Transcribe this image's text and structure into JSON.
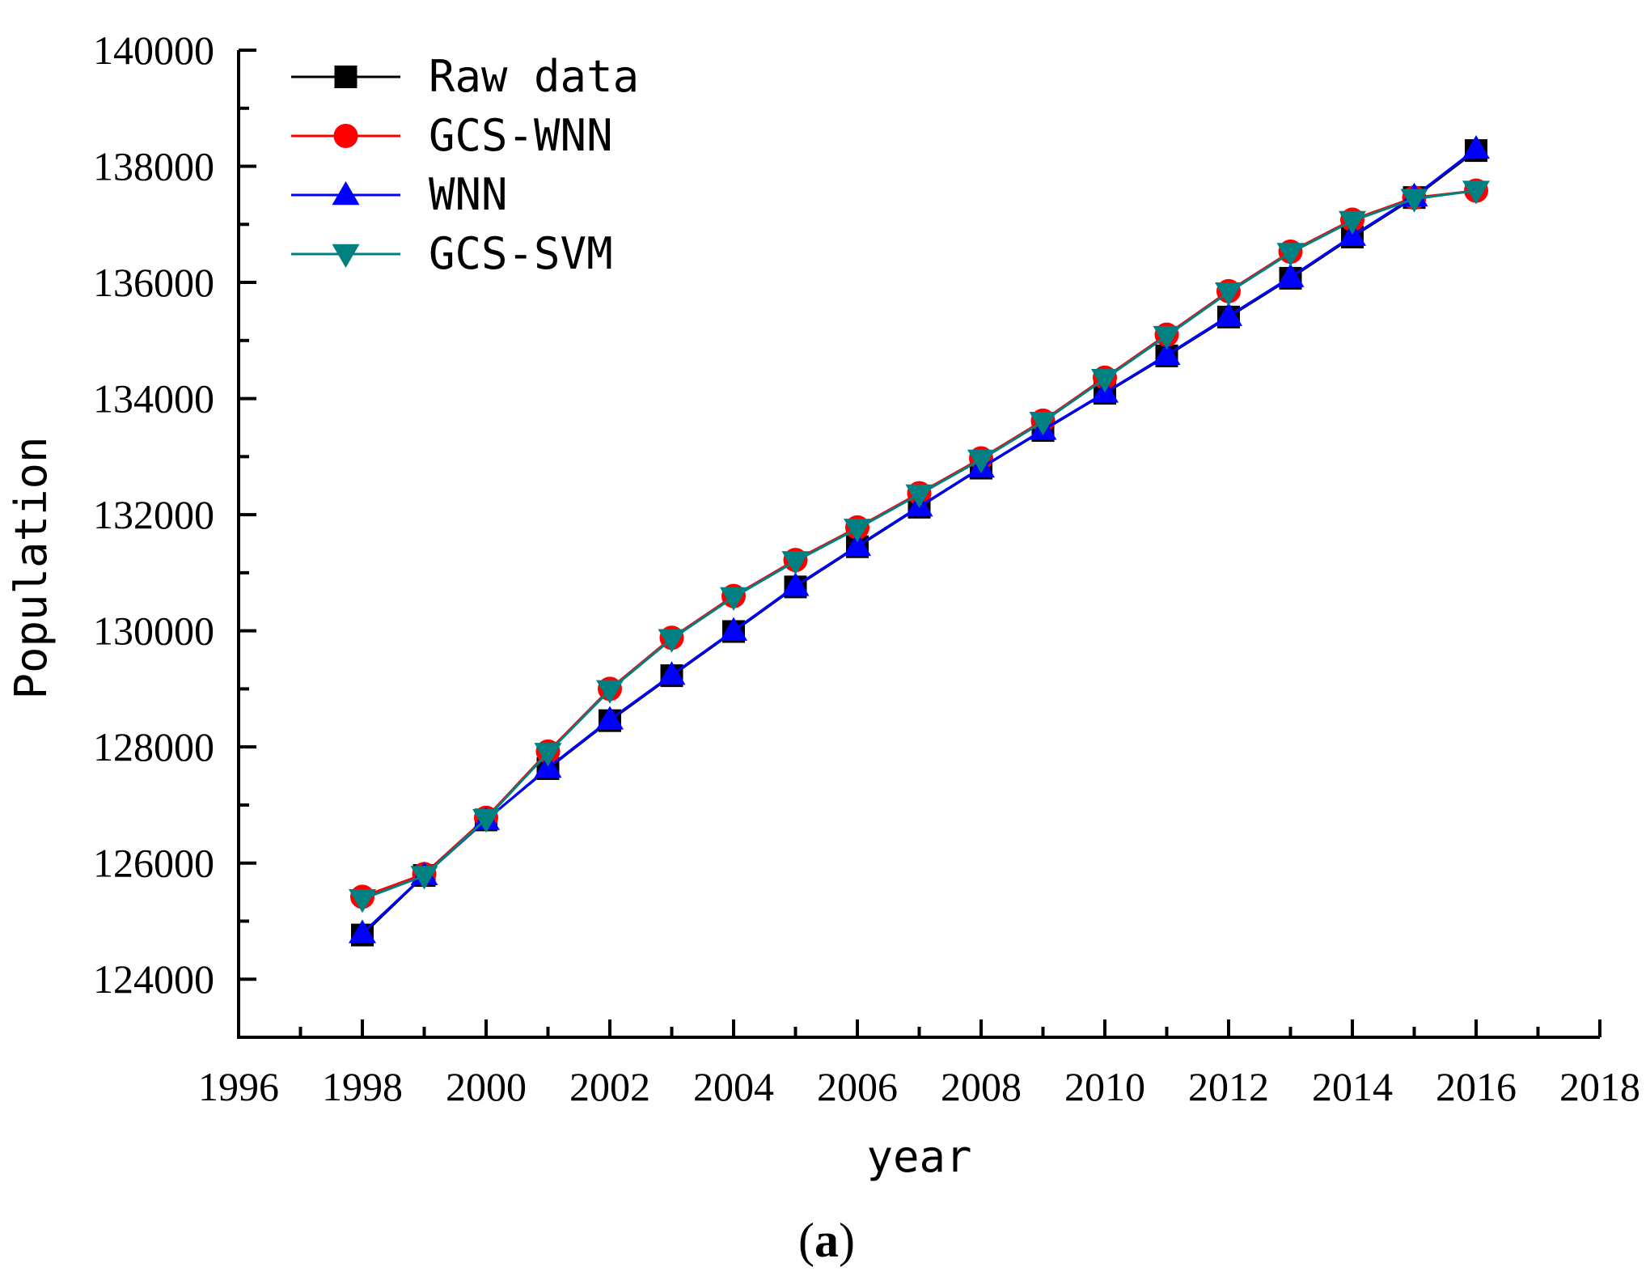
{
  "chart_data": {
    "type": "line",
    "title": "",
    "xlabel": "year",
    "ylabel": "Population",
    "caption": {
      "open": "(",
      "letter": "a",
      "close": ")"
    },
    "xlim": [
      1996,
      2018
    ],
    "ylim": [
      123000,
      140000
    ],
    "x_ticks": [
      1996,
      1998,
      2000,
      2002,
      2004,
      2006,
      2008,
      2010,
      2012,
      2014,
      2016,
      2018
    ],
    "y_ticks": [
      124000,
      126000,
      128000,
      130000,
      132000,
      134000,
      136000,
      138000,
      140000
    ],
    "grid": false,
    "legend_position": "top-left",
    "x": [
      1998,
      1999,
      2000,
      2001,
      2002,
      2003,
      2004,
      2005,
      2006,
      2007,
      2008,
      2009,
      2010,
      2011,
      2012,
      2013,
      2014,
      2015,
      2016
    ],
    "series": [
      {
        "name": "Raw data",
        "color": "#000000",
        "marker": "square",
        "values": [
          124761,
          125786,
          126743,
          127627,
          128453,
          129227,
          129988,
          130756,
          131448,
          132129,
          132802,
          133450,
          134091,
          134735,
          135404,
          136072,
          136782,
          137462,
          138271
        ]
      },
      {
        "name": "GCS-WNN",
        "color": "#ff0000",
        "marker": "circle",
        "values": [
          125420,
          125810,
          126780,
          127920,
          129000,
          129880,
          130600,
          131220,
          131780,
          132370,
          132970,
          133620,
          134360,
          135100,
          135850,
          136530,
          137080,
          137460,
          137580
        ]
      },
      {
        "name": "WNN",
        "color": "#0000ff",
        "marker": "triangle-up",
        "values": [
          124790,
          125790,
          126740,
          127640,
          128470,
          129240,
          130000,
          130770,
          131460,
          132140,
          132810,
          133460,
          134100,
          134750,
          135420,
          136090,
          136800,
          137480,
          138300
        ]
      },
      {
        "name": "GCS-SVM",
        "color": "#008080",
        "marker": "triangle-down",
        "values": [
          125380,
          125780,
          126760,
          127900,
          128980,
          129860,
          130580,
          131200,
          131760,
          132350,
          132950,
          133600,
          134340,
          135080,
          135830,
          136510,
          137060,
          137440,
          137580
        ]
      }
    ]
  }
}
